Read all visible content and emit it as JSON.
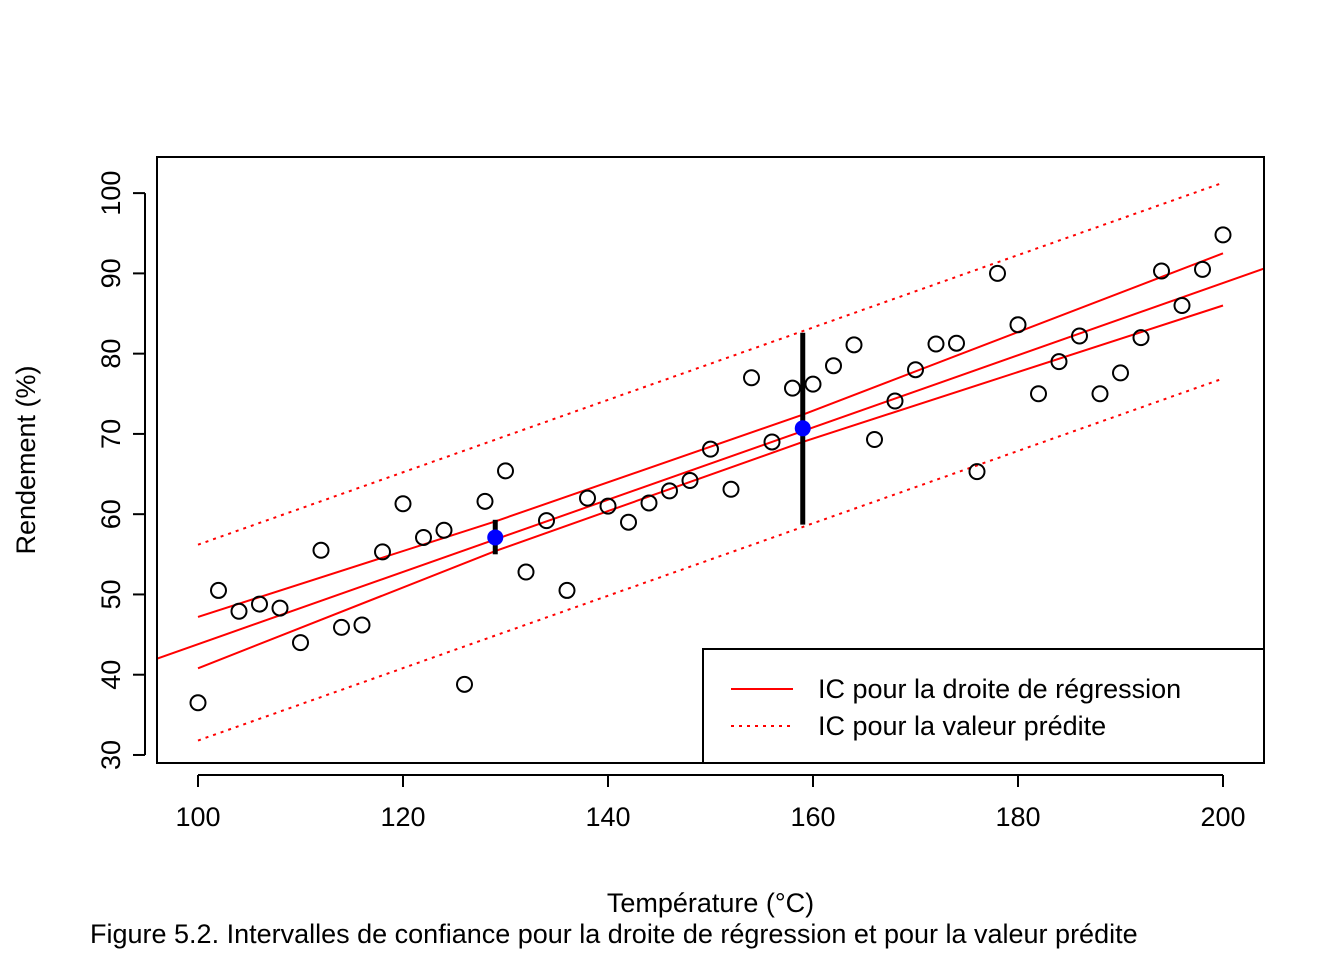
{
  "chart_data": {
    "type": "scatter",
    "title": "",
    "xlabel": "Température (°C)",
    "ylabel": "Rendement (%)",
    "xlim": [
      96,
      204
    ],
    "ylim": [
      29,
      104.5
    ],
    "x_ticks": [
      100,
      120,
      140,
      160,
      180,
      200
    ],
    "y_ticks": [
      30,
      40,
      50,
      60,
      70,
      80,
      90,
      100
    ],
    "grid": false,
    "legend_position": "bottom-right",
    "colors": {
      "points": "#000000",
      "lines": "#ff0000",
      "highlight": "#0000ff",
      "interval_bars": "#000000"
    },
    "points": [
      [
        100,
        36.5
      ],
      [
        102,
        50.5
      ],
      [
        104,
        47.9
      ],
      [
        106,
        48.8
      ],
      [
        108,
        48.3
      ],
      [
        110,
        44.0
      ],
      [
        112,
        55.5
      ],
      [
        114,
        45.9
      ],
      [
        116,
        46.2
      ],
      [
        118,
        55.3
      ],
      [
        120,
        61.3
      ],
      [
        122,
        57.1
      ],
      [
        124,
        58.0
      ],
      [
        126,
        38.8
      ],
      [
        128,
        61.6
      ],
      [
        130,
        65.4
      ],
      [
        132,
        52.8
      ],
      [
        134,
        59.2
      ],
      [
        136,
        50.5
      ],
      [
        138,
        62.0
      ],
      [
        140,
        61.0
      ],
      [
        142,
        59.0
      ],
      [
        144,
        61.4
      ],
      [
        146,
        62.9
      ],
      [
        148,
        64.2
      ],
      [
        150,
        68.1
      ],
      [
        152,
        63.1
      ],
      [
        154,
        77.0
      ],
      [
        156,
        69.0
      ],
      [
        158,
        75.7
      ],
      [
        160,
        76.2
      ],
      [
        162,
        78.5
      ],
      [
        164,
        81.1
      ],
      [
        166,
        69.3
      ],
      [
        168,
        74.1
      ],
      [
        170,
        78.0
      ],
      [
        172,
        81.2
      ],
      [
        174,
        81.3
      ],
      [
        176,
        65.3
      ],
      [
        178,
        90.0
      ],
      [
        180,
        83.6
      ],
      [
        182,
        75.0
      ],
      [
        184,
        79.0
      ],
      [
        186,
        82.2
      ],
      [
        188,
        75.0
      ],
      [
        190,
        77.6
      ],
      [
        192,
        82.0
      ],
      [
        194,
        90.3
      ],
      [
        196,
        86.0
      ],
      [
        198,
        90.5
      ],
      [
        200,
        94.8
      ]
    ],
    "regression_line": {
      "intercept": -1.2,
      "slope": 0.45,
      "x_range": [
        96,
        204
      ]
    },
    "ci_regression": {
      "upper": [
        [
          100,
          47.2
        ],
        [
          129,
          59.1
        ],
        [
          159,
          72.4
        ],
        [
          200,
          92.5
        ]
      ],
      "lower": [
        [
          100,
          40.8
        ],
        [
          129,
          55.4
        ],
        [
          159,
          69.0
        ],
        [
          200,
          86.0
        ]
      ]
    },
    "ci_prediction": {
      "upper": [
        [
          100,
          56.2
        ],
        [
          200,
          101.3
        ]
      ],
      "lower": [
        [
          100,
          31.8
        ],
        [
          200,
          76.9
        ]
      ]
    },
    "highlighted_points": [
      {
        "x": 129,
        "y": 57.1,
        "interval": [
          55.0,
          59.3
        ]
      },
      {
        "x": 159,
        "y": 70.7,
        "interval": [
          58.7,
          82.6
        ]
      }
    ],
    "legend": [
      {
        "label": "IC pour la droite de régression",
        "style": "solid"
      },
      {
        "label": "IC pour la valeur prédite",
        "style": "dotted"
      }
    ]
  },
  "caption": "Figure 5.2. Intervalles de confiance pour la droite de régression et pour la valeur prédite"
}
